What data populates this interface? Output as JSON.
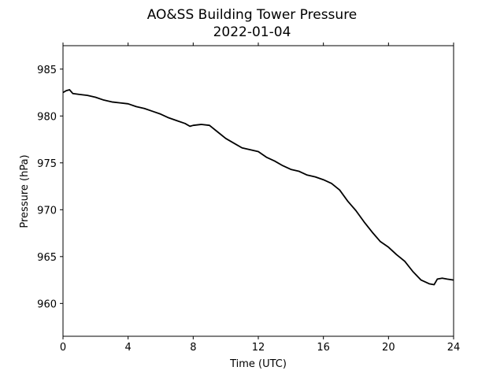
{
  "chart_data": {
    "type": "line",
    "title": "AO&SS Building Tower Pressure",
    "subtitle": "2022-01-04",
    "xlabel": "Time (UTC)",
    "ylabel": "Pressure (hPa)",
    "xlim": [
      0,
      24
    ],
    "ylim": [
      956.5,
      987.5
    ],
    "xticks": [
      0,
      4,
      8,
      12,
      16,
      20,
      24
    ],
    "yticks": [
      960,
      965,
      970,
      975,
      980,
      985
    ],
    "grid": false,
    "legend": "none",
    "line_color": "#000000",
    "series": [
      {
        "x": [
          0,
          0.2,
          0.4,
          0.6,
          1.0,
          1.5,
          2.0,
          2.5,
          3.0,
          3.5,
          4.0,
          4.5,
          5.0,
          5.5,
          6.0,
          6.5,
          7.0,
          7.5,
          7.8,
          8.0,
          8.5,
          9.0,
          9.5,
          10.0,
          10.5,
          11.0,
          11.5,
          12.0,
          12.5,
          13.0,
          13.5,
          14.0,
          14.5,
          15.0,
          15.5,
          16.0,
          16.5,
          17.0,
          17.5,
          18.0,
          18.5,
          19.0,
          19.5,
          20.0,
          20.5,
          21.0,
          21.5,
          22.0,
          22.5,
          22.8,
          23.0,
          23.3,
          23.6,
          24.0
        ],
        "y": [
          982.5,
          982.7,
          982.8,
          982.4,
          982.3,
          982.2,
          982.0,
          981.7,
          981.5,
          981.4,
          981.3,
          981.0,
          980.8,
          980.5,
          980.2,
          979.8,
          979.5,
          979.2,
          978.9,
          979.0,
          979.1,
          979.0,
          978.3,
          977.6,
          977.1,
          976.6,
          976.4,
          976.2,
          975.6,
          975.2,
          974.7,
          974.3,
          974.1,
          973.7,
          973.5,
          973.2,
          972.8,
          972.1,
          970.9,
          969.9,
          968.7,
          967.6,
          966.6,
          966.0,
          965.2,
          964.5,
          963.4,
          962.5,
          962.1,
          962.0,
          962.6,
          962.7,
          962.6,
          962.5
        ]
      }
    ]
  }
}
